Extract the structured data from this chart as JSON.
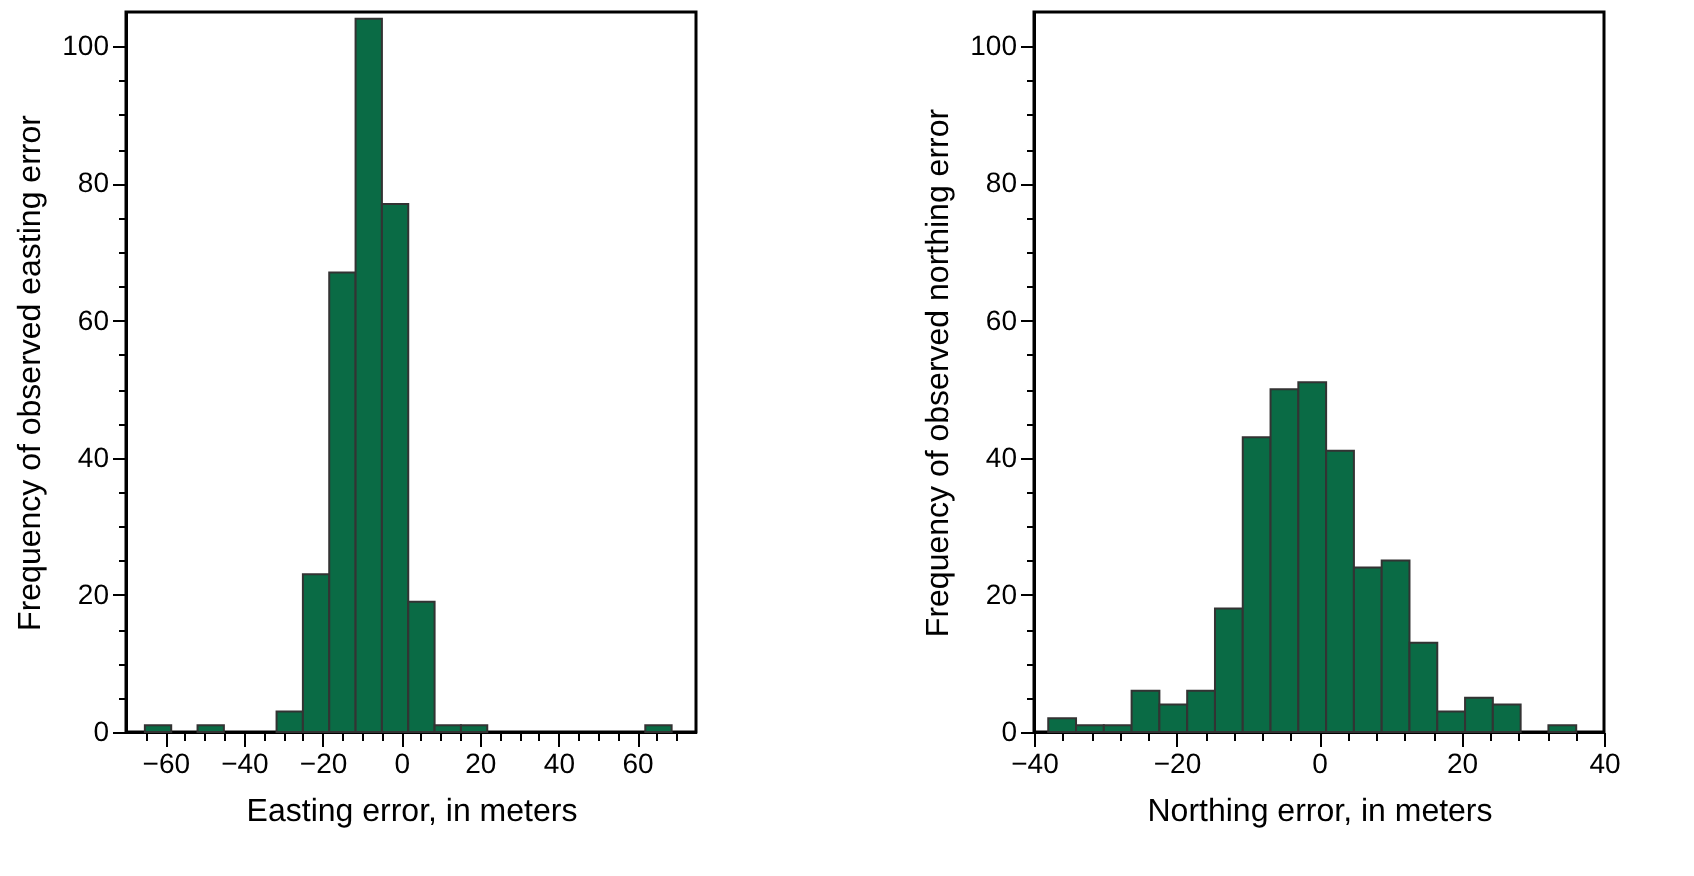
{
  "chart_data": [
    {
      "type": "histogram",
      "xlabel": "Easting error, in meters",
      "ylabel": "Frequency of observed easting error",
      "color": "#0a6b45",
      "bins": [
        -65.2,
        -58.5,
        -51.8,
        -45.1,
        -38.4,
        -31.7,
        -25,
        -18.3,
        -11.6,
        -4.9,
        1.8,
        8.5,
        15.2,
        21.9,
        28.6,
        35.3,
        42,
        48.7,
        55.4,
        62.1,
        68.8
      ],
      "values": [
        1,
        0,
        1,
        0,
        0,
        3,
        23,
        67,
        104,
        77,
        19,
        1,
        1,
        0,
        0,
        0,
        0,
        0,
        0,
        1
      ],
      "xlim": [
        -70,
        75
      ],
      "ylim": [
        0,
        105
      ],
      "xticks": [
        {
          "value": -65,
          "label": null
        },
        {
          "value": -60,
          "label": "−60"
        },
        {
          "value": -55,
          "label": null
        },
        {
          "value": -50,
          "label": null
        },
        {
          "value": -45,
          "label": null
        },
        {
          "value": -40,
          "label": "−40"
        },
        {
          "value": -35,
          "label": null
        },
        {
          "value": -30,
          "label": null
        },
        {
          "value": -25,
          "label": null
        },
        {
          "value": -20,
          "label": "−20"
        },
        {
          "value": -15,
          "label": null
        },
        {
          "value": -10,
          "label": null
        },
        {
          "value": -5,
          "label": null
        },
        0,
        {
          "value": 5,
          "label": null
        },
        {
          "value": 10,
          "label": null
        },
        {
          "value": 15,
          "label": null
        },
        20,
        {
          "value": 25,
          "label": null
        },
        {
          "value": 30,
          "label": null
        },
        {
          "value": 35,
          "label": null
        },
        40,
        {
          "value": 45,
          "label": null
        },
        {
          "value": 50,
          "label": null
        },
        {
          "value": 55,
          "label": null
        },
        60,
        {
          "value": 65,
          "label": null
        },
        {
          "value": 70,
          "label": null
        }
      ],
      "yticks": [
        0,
        {
          "value": 5,
          "label": null
        },
        {
          "value": 10,
          "label": null
        },
        {
          "value": 15,
          "label": null
        },
        20,
        {
          "value": 25,
          "label": null
        },
        {
          "value": 30,
          "label": null
        },
        {
          "value": 35,
          "label": null
        },
        40,
        {
          "value": 45,
          "label": null
        },
        {
          "value": 50,
          "label": null
        },
        {
          "value": 55,
          "label": null
        },
        60,
        {
          "value": 65,
          "label": null
        },
        {
          "value": 70,
          "label": null
        },
        {
          "value": 75,
          "label": null
        },
        80,
        {
          "value": 85,
          "label": null
        },
        {
          "value": 90,
          "label": null
        },
        {
          "value": 95,
          "label": null
        },
        100
      ],
      "grid": false
    },
    {
      "type": "histogram",
      "xlabel": "Northing error, in meters",
      "ylabel": "Frequency of observed northing error",
      "color": "#0a6b45",
      "bins": [
        -38,
        -34.1,
        -30.2,
        -26.3,
        -22.4,
        -18.5,
        -14.6,
        -10.7,
        -6.8,
        -2.9,
        1,
        4.9,
        8.8,
        12.7,
        16.6,
        20.5,
        24.4,
        28.3,
        32.2,
        36.1
      ],
      "values": [
        2,
        1,
        1,
        6,
        4,
        6,
        18,
        43,
        50,
        51,
        41,
        24,
        25,
        13,
        3,
        5,
        4,
        0,
        1
      ],
      "xlim": [
        -40,
        40
      ],
      "ylim": [
        0,
        105
      ],
      "xticks": [
        {
          "value": -40,
          "label": "−40"
        },
        {
          "value": -36,
          "label": null
        },
        {
          "value": -32,
          "label": null
        },
        {
          "value": -28,
          "label": null
        },
        {
          "value": -24,
          "label": null
        },
        {
          "value": -20,
          "label": "−20"
        },
        {
          "value": -16,
          "label": null
        },
        {
          "value": -12,
          "label": null
        },
        {
          "value": -8,
          "label": null
        },
        {
          "value": -4,
          "label": null
        },
        0,
        {
          "value": 4,
          "label": null
        },
        {
          "value": 8,
          "label": null
        },
        {
          "value": 12,
          "label": null
        },
        {
          "value": 16,
          "label": null
        },
        20,
        {
          "value": 24,
          "label": null
        },
        {
          "value": 28,
          "label": null
        },
        {
          "value": 32,
          "label": null
        },
        {
          "value": 36,
          "label": null
        },
        40
      ],
      "yticks": [
        0,
        {
          "value": 5,
          "label": null
        },
        {
          "value": 10,
          "label": null
        },
        {
          "value": 15,
          "label": null
        },
        20,
        {
          "value": 25,
          "label": null
        },
        {
          "value": 30,
          "label": null
        },
        {
          "value": 35,
          "label": null
        },
        40,
        {
          "value": 45,
          "label": null
        },
        {
          "value": 50,
          "label": null
        },
        {
          "value": 55,
          "label": null
        },
        60,
        {
          "value": 65,
          "label": null
        },
        {
          "value": 70,
          "label": null
        },
        {
          "value": 75,
          "label": null
        },
        80,
        {
          "value": 85,
          "label": null
        },
        {
          "value": 90,
          "label": null
        },
        {
          "value": 95,
          "label": null
        },
        100
      ],
      "grid": false
    }
  ]
}
